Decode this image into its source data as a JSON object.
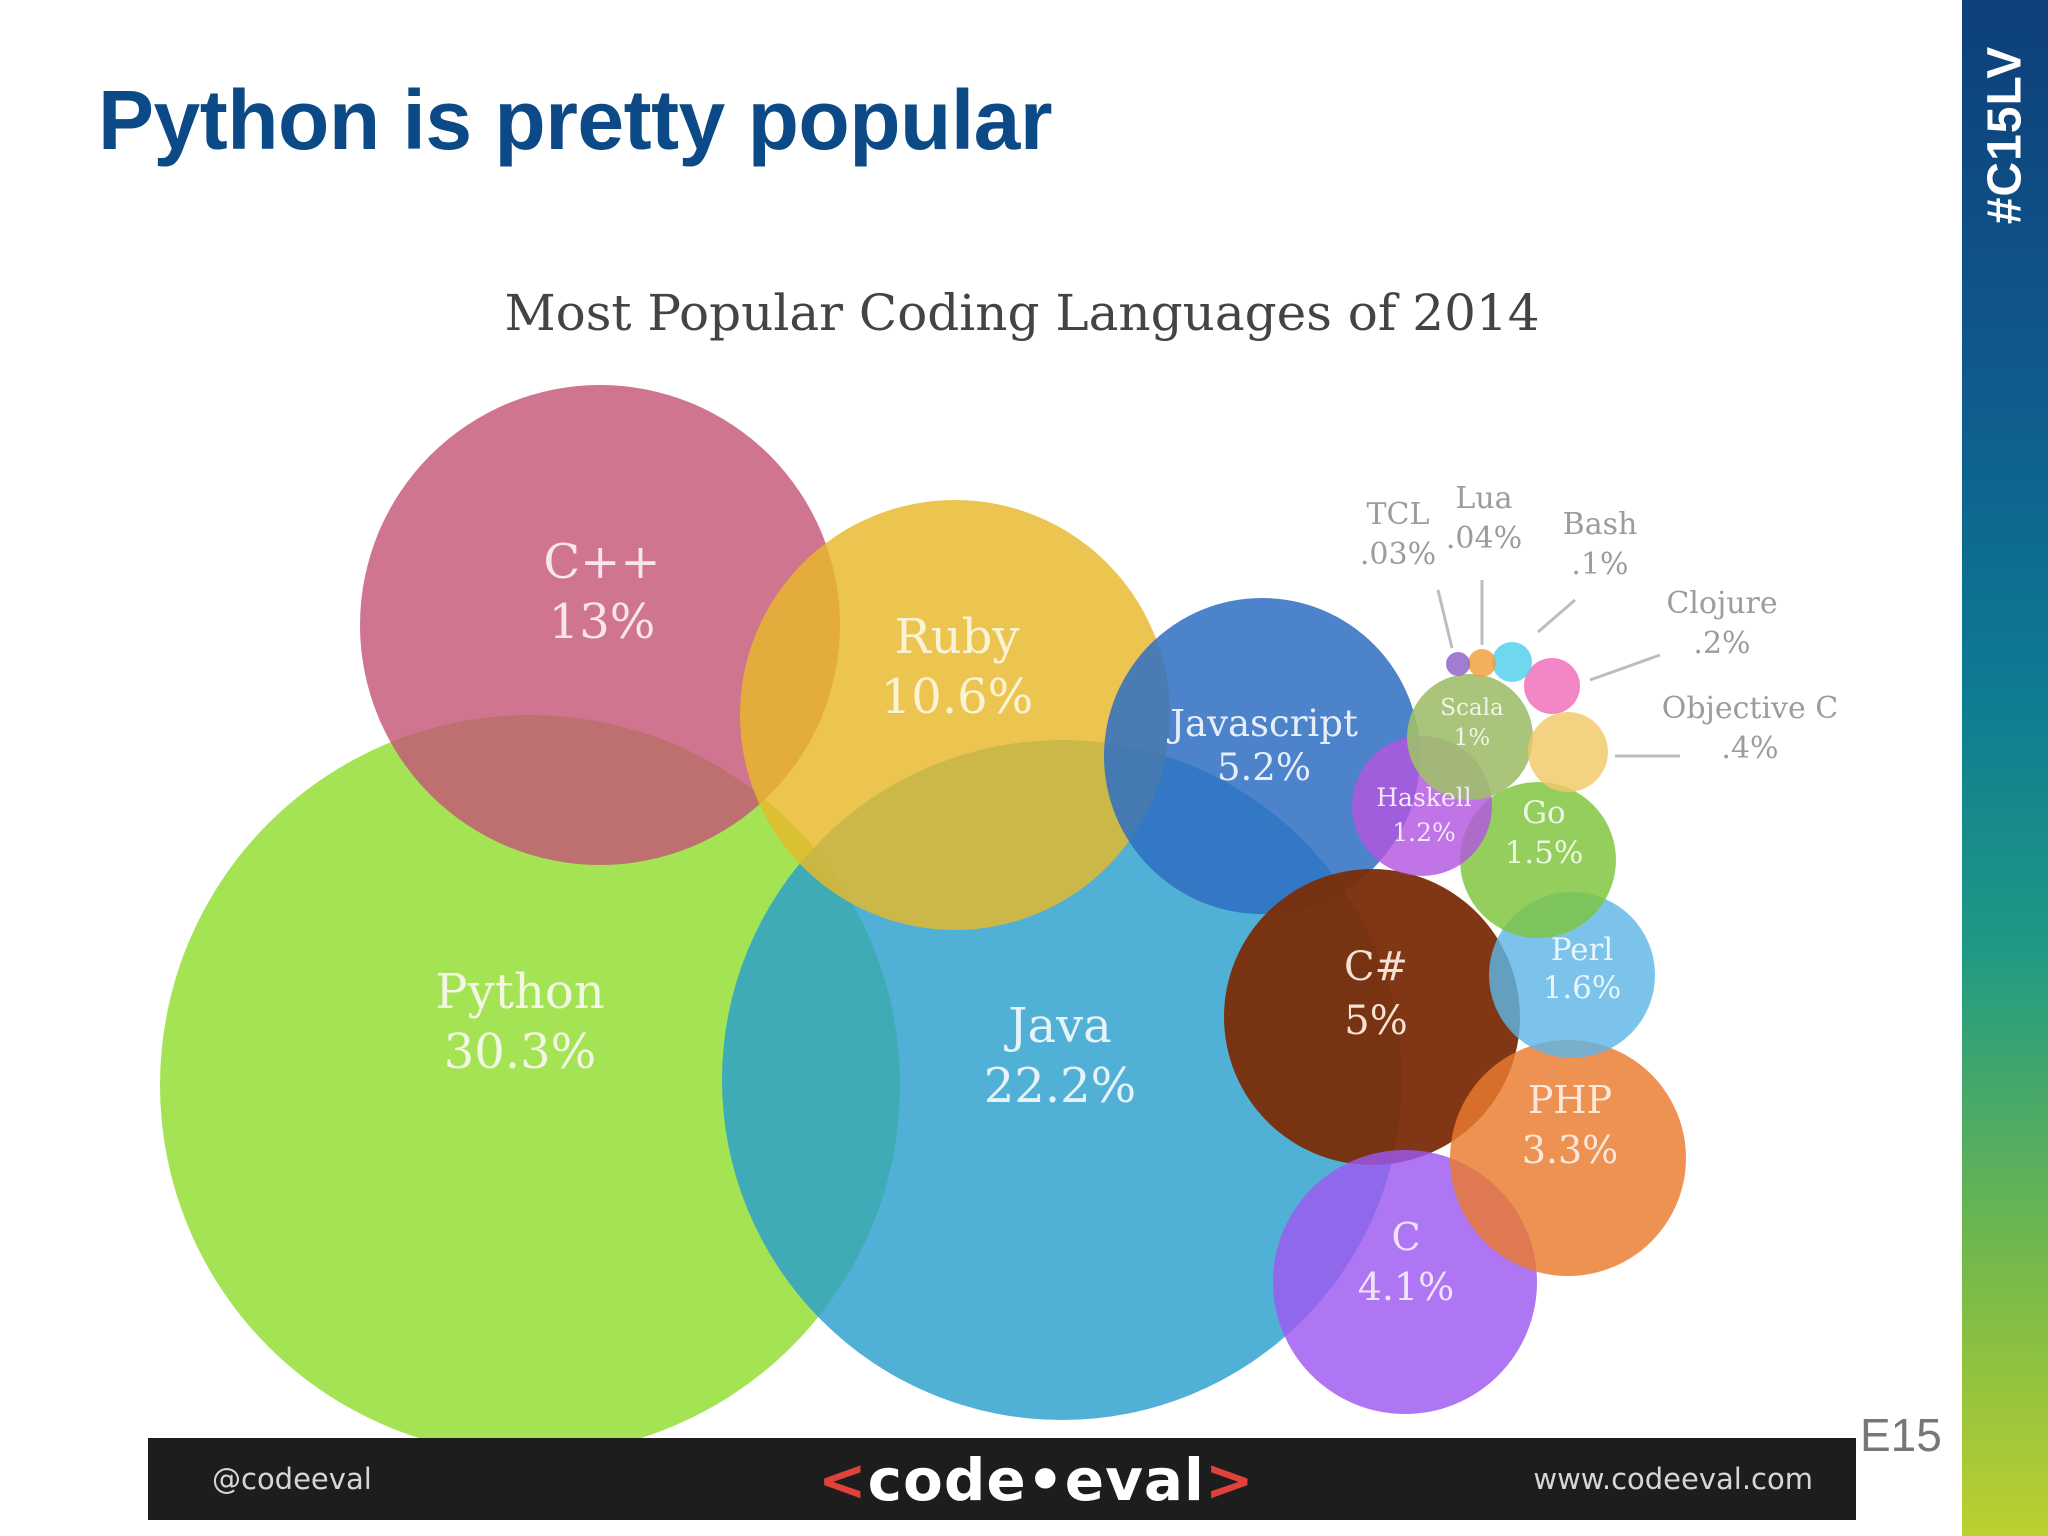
{
  "slide": {
    "title": "Python is pretty popular",
    "side_tag": "#C15LV",
    "page_number": "E15"
  },
  "footer": {
    "handle": "@codeeval",
    "logo_left": "<",
    "logo_text": "code•eval",
    "logo_right": ">",
    "url": "www.codeeval.com"
  },
  "chart_data": {
    "type": "bubble",
    "title": "Most Popular Coding Languages of 2014",
    "unit": "%",
    "series": [
      {
        "name": "Python",
        "value_label": "30.3%",
        "value": 30.3,
        "color": "#8fdd2e"
      },
      {
        "name": "Java",
        "value_label": "22.2%",
        "value": 22.2,
        "color": "#2a9fcd"
      },
      {
        "name": "C++",
        "value_label": "13%",
        "value": 13,
        "color": "#c45778"
      },
      {
        "name": "Ruby",
        "value_label": "10.6%",
        "value": 10.6,
        "color": "#e8b82a"
      },
      {
        "name": "Javascript",
        "value_label": "5.2%",
        "value": 5.2,
        "color": "#2f6fc2"
      },
      {
        "name": "C#",
        "value_label": "5%",
        "value": 5,
        "color": "#7a2c08"
      },
      {
        "name": "C",
        "value_label": "4.1%",
        "value": 4.1,
        "color": "#9d58f0"
      },
      {
        "name": "PHP",
        "value_label": "3.3%",
        "value": 3.3,
        "color": "#ea7a2e"
      },
      {
        "name": "Perl",
        "value_label": "1.6%",
        "value": 1.6,
        "color": "#5fb6e6"
      },
      {
        "name": "Go",
        "value_label": "1.5%",
        "value": 1.5,
        "color": "#7cc53a"
      },
      {
        "name": "Haskell",
        "value_label": "1.2%",
        "value": 1.2,
        "color": "#b355e0"
      },
      {
        "name": "Scala",
        "value_label": "1%",
        "value": 1,
        "color": "#9fbf6d"
      },
      {
        "name": "Objective C",
        "value_label": ".4%",
        "value": 0.4,
        "color": "#f0c867"
      },
      {
        "name": "Clojure",
        "value_label": ".2%",
        "value": 0.2,
        "color": "#f06bb8"
      },
      {
        "name": "Bash",
        "value_label": ".1%",
        "value": 0.1,
        "color": "#4fd0ea"
      },
      {
        "name": "Lua",
        "value_label": ".04%",
        "value": 0.04,
        "color": "#f29d36"
      },
      {
        "name": "TCL",
        "value_label": ".03%",
        "value": 0.03,
        "color": "#8e5fc7"
      }
    ]
  }
}
